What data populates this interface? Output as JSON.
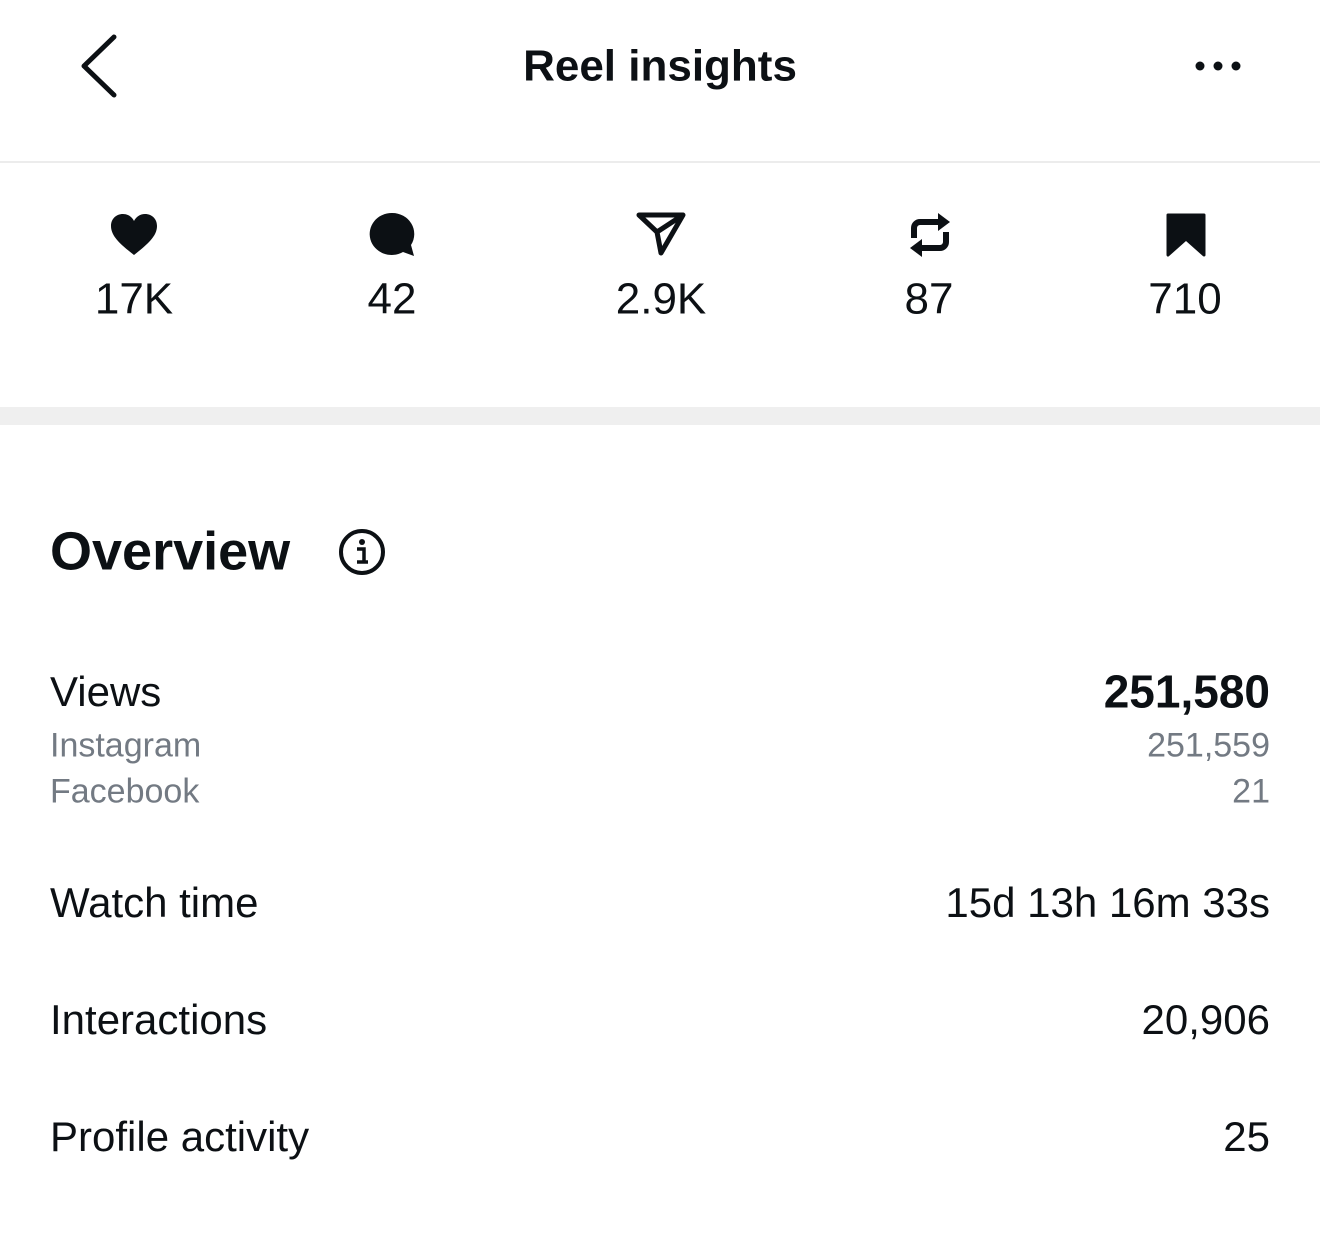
{
  "header": {
    "title": "Reel insights"
  },
  "stats": {
    "likes": "17K",
    "comments": "42",
    "shares": "2.9K",
    "reposts": "87",
    "saves": "710"
  },
  "overview": {
    "title": "Overview",
    "rows": [
      {
        "label": "Views",
        "value": "251,580",
        "breakdown": [
          {
            "label": "Instagram",
            "value": "251,559"
          },
          {
            "label": "Facebook",
            "value": "21"
          }
        ]
      },
      {
        "label": "Watch time",
        "value": "15d 13h 16m 33s"
      },
      {
        "label": "Interactions",
        "value": "20,906"
      },
      {
        "label": "Profile activity",
        "value": "25"
      }
    ]
  }
}
